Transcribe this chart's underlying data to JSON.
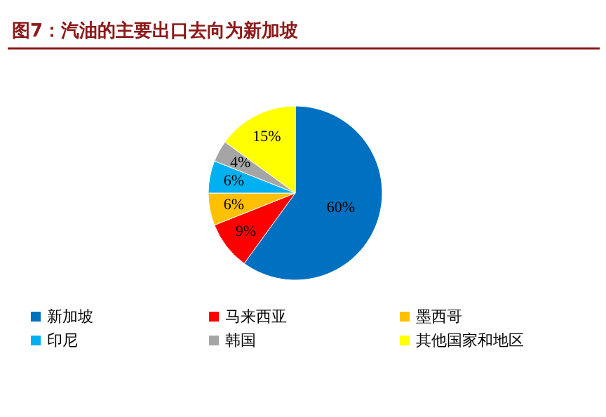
{
  "chart_data": {
    "type": "pie",
    "title": "图7：汽油的主要出口去向为新加坡",
    "categories": [
      "新加坡",
      "马来西亚",
      "墨西哥",
      "印尼",
      "韩国",
      "其他国家和地区"
    ],
    "values": [
      60,
      9,
      6,
      6,
      4,
      15
    ],
    "value_labels": [
      "60%",
      "9%",
      "6%",
      "6%",
      "4%",
      "15%"
    ],
    "colors": [
      "#0070c0",
      "#ff0000",
      "#ffc000",
      "#00b0f0",
      "#a5a5a5",
      "#ffff00"
    ],
    "legend": "bottom"
  }
}
